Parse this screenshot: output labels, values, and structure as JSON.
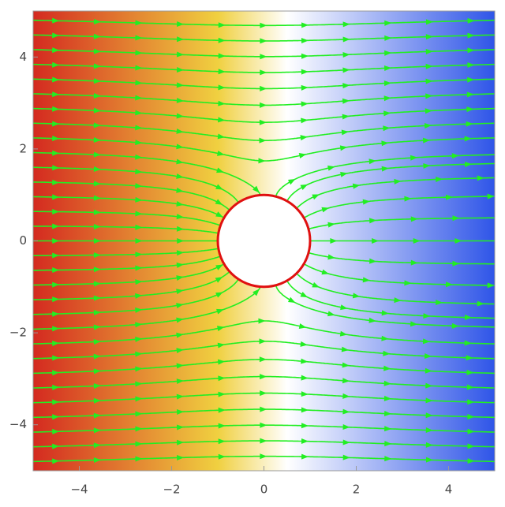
{
  "chart_data": {
    "type": "streamplot",
    "field": "uniform field around a grounded conducting cylinder",
    "field_strength": 1,
    "circle": {
      "center": [
        0,
        0
      ],
      "radius": 1,
      "color": "#e01010"
    },
    "line_color": "#22ee22",
    "background_colors": [
      "#d42a20",
      "#f0d040",
      "#ffffff",
      "#2f55e8"
    ],
    "xlim": [
      -5,
      5
    ],
    "ylim": [
      -5,
      5
    ],
    "xticks": [
      {
        "value": -4,
        "label": "−4"
      },
      {
        "value": -2,
        "label": "−2"
      },
      0,
      2,
      4
    ],
    "yticks": [
      {
        "value": -4,
        "label": "−4"
      },
      {
        "value": -2,
        "label": "−2"
      },
      0,
      2,
      4
    ]
  }
}
